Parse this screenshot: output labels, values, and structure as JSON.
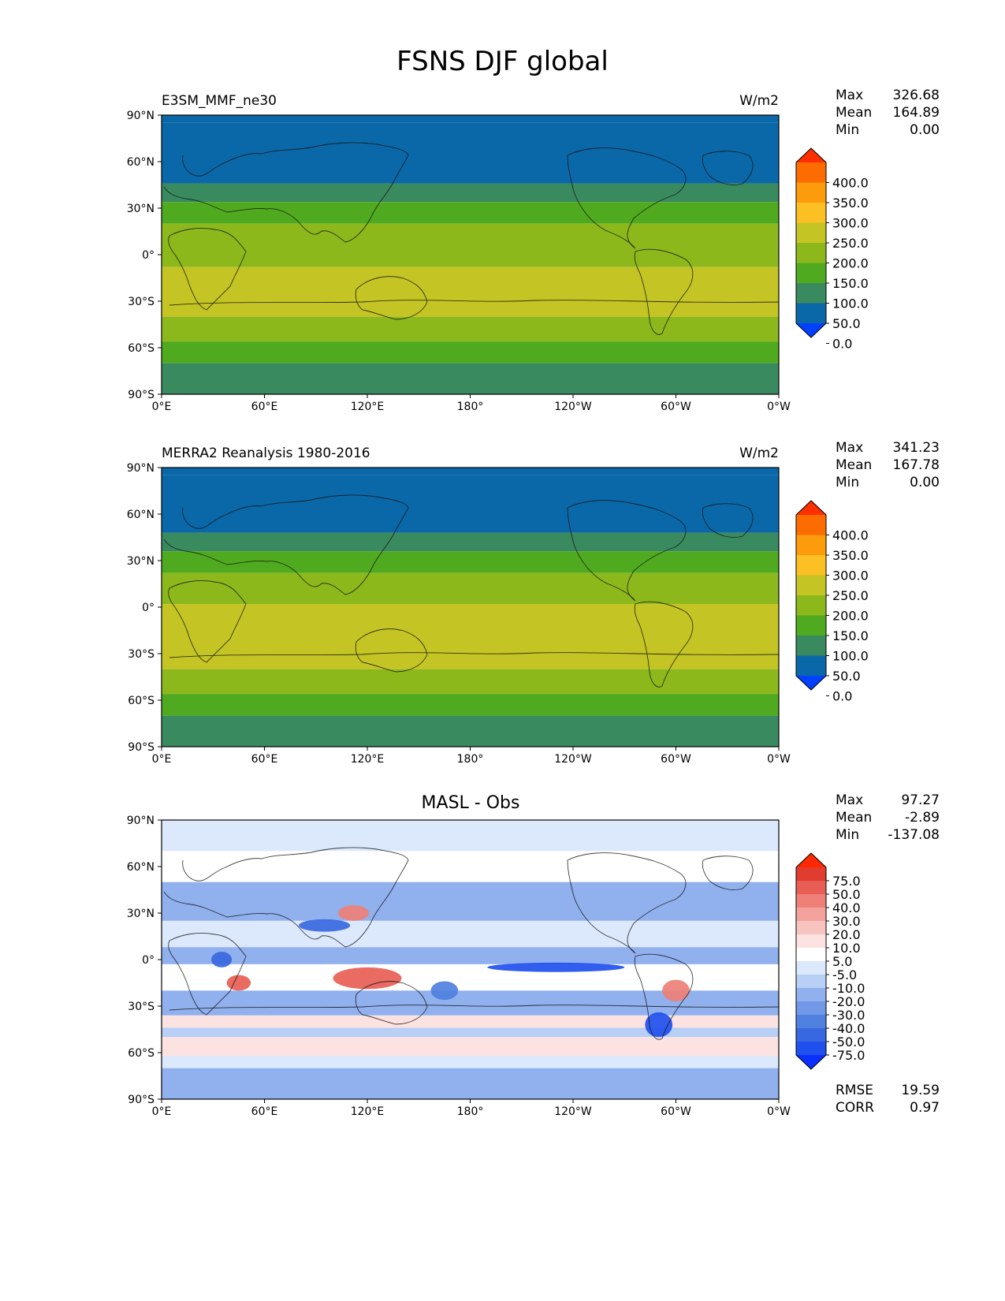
{
  "title": "FSNS DJF global",
  "chart_data": [
    {
      "type": "heatmap",
      "panel": "test",
      "title_left": "E3SM_MMF_ne30",
      "title_right": "W/m2",
      "stats": [
        [
          "Max",
          "326.68"
        ],
        [
          "Mean",
          "164.89"
        ],
        [
          "Min",
          "0.00"
        ]
      ],
      "xticks": [
        "0°E",
        "60°E",
        "120°E",
        "180°",
        "120°W",
        "60°W",
        "0°W"
      ],
      "yticks": [
        "90°N",
        "60°N",
        "30°N",
        "0°",
        "30°S",
        "60°S",
        "90°S"
      ],
      "xlim": [
        0,
        360
      ],
      "ylim": [
        -90,
        90
      ],
      "colorbar": {
        "labels": [
          "400.0",
          "350.0",
          "300.0",
          "250.0",
          "200.0",
          "150.0",
          "100.0",
          "50.0",
          "0.0"
        ],
        "colors": [
          "#0040ff",
          "#0a68a8",
          "#3a8a60",
          "#50aa20",
          "#8cb81c",
          "#c4c424",
          "#fcc024",
          "#fc9c0c",
          "#fc6c00",
          "#ff3000"
        ]
      },
      "bands": [
        {
          "lat_top": 90,
          "lat_bot": 85,
          "value": 0
        },
        {
          "lat_top": 85,
          "lat_bot": 46,
          "value": 25
        },
        {
          "lat_top": 46,
          "lat_bot": 34,
          "value": 75
        },
        {
          "lat_top": 34,
          "lat_bot": 20,
          "value": 125
        },
        {
          "lat_top": 20,
          "lat_bot": -8,
          "value": 175
        },
        {
          "lat_top": -8,
          "lat_bot": -40,
          "value": 225
        },
        {
          "lat_top": -40,
          "lat_bot": -56,
          "value": 175
        },
        {
          "lat_top": -56,
          "lat_bot": -70,
          "value": 125
        },
        {
          "lat_top": -70,
          "lat_bot": -90,
          "value": 75
        }
      ]
    },
    {
      "type": "heatmap",
      "panel": "reference",
      "title_left": "MERRA2 Reanalysis 1980-2016",
      "title_right": "W/m2",
      "stats": [
        [
          "Max",
          "341.23"
        ],
        [
          "Mean",
          "167.78"
        ],
        [
          "Min",
          "0.00"
        ]
      ],
      "xticks": [
        "0°E",
        "60°E",
        "120°E",
        "180°",
        "120°W",
        "60°W",
        "0°W"
      ],
      "yticks": [
        "90°N",
        "60°N",
        "30°N",
        "0°",
        "30°S",
        "60°S",
        "90°S"
      ],
      "xlim": [
        0,
        360
      ],
      "ylim": [
        -90,
        90
      ],
      "colorbar": {
        "labels": [
          "400.0",
          "350.0",
          "300.0",
          "250.0",
          "200.0",
          "150.0",
          "100.0",
          "50.0",
          "0.0"
        ],
        "colors": [
          "#0040ff",
          "#0a68a8",
          "#3a8a60",
          "#50aa20",
          "#8cb81c",
          "#c4c424",
          "#fcc024",
          "#fc9c0c",
          "#fc6c00",
          "#ff3000"
        ]
      },
      "bands": [
        {
          "lat_top": 90,
          "lat_bot": 85,
          "value": 0
        },
        {
          "lat_top": 85,
          "lat_bot": 48,
          "value": 25
        },
        {
          "lat_top": 48,
          "lat_bot": 36,
          "value": 75
        },
        {
          "lat_top": 36,
          "lat_bot": 22,
          "value": 125
        },
        {
          "lat_top": 22,
          "lat_bot": 2,
          "value": 175
        },
        {
          "lat_top": 2,
          "lat_bot": -40,
          "value": 225
        },
        {
          "lat_top": -40,
          "lat_bot": -56,
          "value": 175
        },
        {
          "lat_top": -56,
          "lat_bot": -70,
          "value": 125
        },
        {
          "lat_top": -70,
          "lat_bot": -90,
          "value": 75
        }
      ]
    },
    {
      "type": "heatmap",
      "panel": "difference",
      "title_center": "MASL - Obs",
      "stats": [
        [
          "Max",
          "97.27"
        ],
        [
          "Mean",
          "-2.89"
        ],
        [
          "Min",
          "-137.08"
        ]
      ],
      "extra_stats": [
        [
          "RMSE",
          "19.59"
        ],
        [
          "CORR",
          "0.97"
        ]
      ],
      "xticks": [
        "0°E",
        "60°E",
        "120°E",
        "180°",
        "120°W",
        "60°W",
        "0°W"
      ],
      "yticks": [
        "90°N",
        "60°N",
        "30°N",
        "0°",
        "30°S",
        "60°S",
        "90°S"
      ],
      "xlim": [
        0,
        360
      ],
      "ylim": [
        -90,
        90
      ],
      "colorbar": {
        "labels": [
          "75.0",
          "50.0",
          "40.0",
          "30.0",
          "20.0",
          "10.0",
          "5.0",
          "-5.0",
          "-10.0",
          "-20.0",
          "-30.0",
          "-40.0",
          "-50.0",
          "-75.0"
        ],
        "colors": [
          "#0a30ff",
          "#2050ee",
          "#3868e0",
          "#5080e0",
          "#7098e6",
          "#90b0ee",
          "#b8cff6",
          "#dce8fc",
          "#ffffff",
          "#fce2e0",
          "#f8c4c0",
          "#f4a29c",
          "#ee8078",
          "#e85e54",
          "#e03c30",
          "#ff2800"
        ]
      },
      "bands": [
        {
          "lat_top": 90,
          "lat_bot": 70,
          "value": 0
        },
        {
          "lat_top": 70,
          "lat_bot": 50,
          "value": 8
        },
        {
          "lat_top": 50,
          "lat_bot": 25,
          "value": -12
        },
        {
          "lat_top": 25,
          "lat_bot": 8,
          "value": 3
        },
        {
          "lat_top": 8,
          "lat_bot": -3,
          "value": -18
        },
        {
          "lat_top": -3,
          "lat_bot": -20,
          "value": 6
        },
        {
          "lat_top": -20,
          "lat_bot": -36,
          "value": -12
        },
        {
          "lat_top": -36,
          "lat_bot": -44,
          "value": 12
        },
        {
          "lat_top": -44,
          "lat_bot": -50,
          "value": -8
        },
        {
          "lat_top": -50,
          "lat_bot": -62,
          "value": 15
        },
        {
          "lat_top": -62,
          "lat_bot": -70,
          "value": 4
        },
        {
          "lat_top": -70,
          "lat_bot": -90,
          "value": -12
        }
      ],
      "patches": [
        {
          "lon": 120,
          "lat": -12,
          "w": 40,
          "h": 14,
          "value": 60
        },
        {
          "lon": 45,
          "lat": -15,
          "w": 14,
          "h": 10,
          "value": 55
        },
        {
          "lon": 112,
          "lat": 30,
          "w": 18,
          "h": 10,
          "value": 45
        },
        {
          "lon": 300,
          "lat": -20,
          "w": 16,
          "h": 14,
          "value": 45
        },
        {
          "lon": 230,
          "lat": -5,
          "w": 80,
          "h": 6,
          "value": -55
        },
        {
          "lon": 290,
          "lat": -42,
          "w": 16,
          "h": 16,
          "value": -55
        },
        {
          "lon": 35,
          "lat": 0,
          "w": 12,
          "h": 10,
          "value": -45
        },
        {
          "lon": 165,
          "lat": -20,
          "w": 16,
          "h": 12,
          "value": -40
        },
        {
          "lon": 95,
          "lat": 22,
          "w": 30,
          "h": 8,
          "value": -45
        }
      ]
    }
  ]
}
